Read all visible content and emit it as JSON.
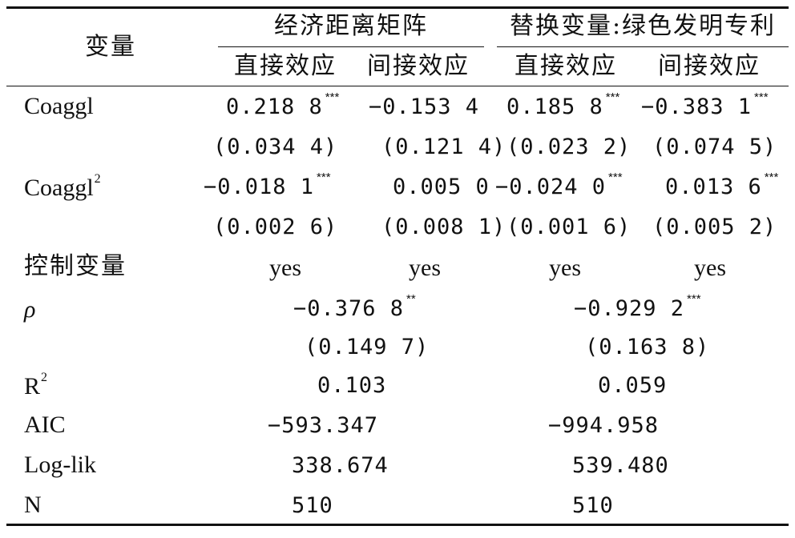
{
  "header": {
    "variable": "变量",
    "group1": "经济距离矩阵",
    "group2": "替换变量:绿色发明专利",
    "direct": "直接效应",
    "indirect": "间接效应"
  },
  "rows": {
    "coaggl": {
      "label": "Coaggl",
      "g1_direct": "0.218 8",
      "g1_direct_sig": "***",
      "g1_indirect": "−0.153 4",
      "g1_indirect_sig": "",
      "g2_direct": "0.185 8",
      "g2_direct_sig": "***",
      "g2_indirect": "−0.383 1",
      "g2_indirect_sig": "***",
      "g1_direct_se": "(0.034 4)",
      "g1_indirect_se": "(0.121 4)",
      "g2_direct_se": "(0.023 2)",
      "g2_indirect_se": "(0.074 5)"
    },
    "coaggl2": {
      "label": "Coaggl",
      "label_sup": "2",
      "g1_direct": "−0.018 1",
      "g1_direct_sig": "***",
      "g1_indirect": "0.005 0",
      "g1_indirect_sig": "",
      "g2_direct": "−0.024 0",
      "g2_direct_sig": "***",
      "g2_indirect": "0.013 6",
      "g2_indirect_sig": "***",
      "g1_direct_se": "(0.002 6)",
      "g1_indirect_se": "(0.008 1)",
      "g2_direct_se": "(0.001 6)",
      "g2_indirect_se": "(0.005 2)"
    },
    "controls": {
      "label": "控制变量",
      "v1": "yes",
      "v2": "yes",
      "v3": "yes",
      "v4": "yes"
    },
    "rho": {
      "label": "ρ",
      "g1": "−0.376 8",
      "g1_sig": "**",
      "g2": "−0.929 2",
      "g2_sig": "***",
      "g1_se": "(0.149 7)",
      "g2_se": "(0.163 8)"
    },
    "r2": {
      "label": "R",
      "label_sup": "2",
      "g1": "0.103",
      "g2": "0.059"
    },
    "aic": {
      "label": "AIC",
      "g1": "−593.347",
      "g2": "−994.958"
    },
    "loglik": {
      "label": "Log-lik",
      "g1": "338.674",
      "g2": "539.480"
    },
    "n": {
      "label": "N",
      "g1": "510",
      "g2": "510"
    }
  }
}
